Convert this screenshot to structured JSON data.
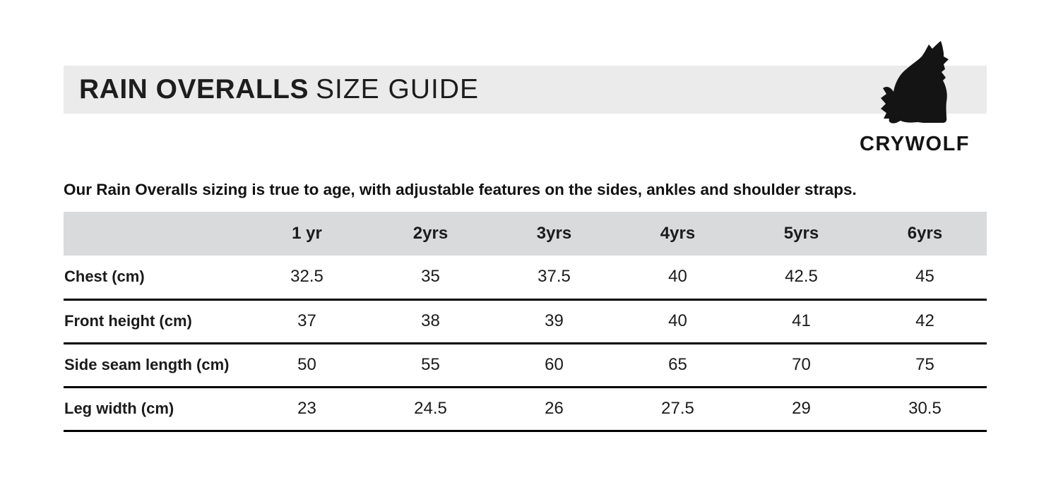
{
  "page": {
    "background": "#ffffff"
  },
  "title_bar": {
    "bg_color": "#ebebeb",
    "title_main": "RAIN OVERALLS",
    "title_sub": "SIZE GUIDE"
  },
  "brand": {
    "name": "CRYWOLF",
    "logo_icon": "howling-wolf-icon",
    "ink_color": "#141414"
  },
  "intro": {
    "text": "Our Rain Overalls sizing is true to age, with adjustable features on the sides, ankles and shoulder straps."
  },
  "size_table": {
    "header_bg": "#d9dadb",
    "border_color": "#000000",
    "columns": [
      "",
      "1 yr",
      "2yrs",
      "3yrs",
      "4yrs",
      "5yrs",
      "6yrs"
    ],
    "rows": [
      {
        "label": "Chest (cm)",
        "values": [
          "32.5",
          "35",
          "37.5",
          "40",
          "42.5",
          "45"
        ]
      },
      {
        "label": "Front height (cm)",
        "values": [
          "37",
          "38",
          "39",
          "40",
          "41",
          "42"
        ]
      },
      {
        "label": "Side seam length (cm)",
        "values": [
          "50",
          "55",
          "60",
          "65",
          "70",
          "75"
        ]
      },
      {
        "label": "Leg width (cm)",
        "values": [
          "23",
          "24.5",
          "26",
          "27.5",
          "29",
          "30.5"
        ]
      }
    ]
  }
}
